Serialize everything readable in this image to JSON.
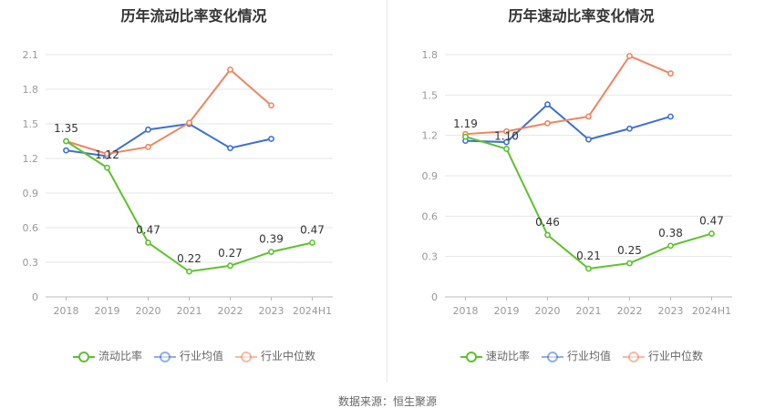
{
  "source_text": "数据来源：恒生聚源",
  "colors": {
    "primary": "#5cc22e",
    "avg": "#3b6fd8",
    "median": "#f0845f",
    "grid": "#e6e6e6",
    "axis": "#999999"
  },
  "chart_data": [
    {
      "type": "line",
      "title": "历年流动比率变化情况",
      "categories": [
        "2018",
        "2019",
        "2020",
        "2021",
        "2022",
        "2023",
        "2024H1"
      ],
      "ylim": [
        0,
        2.1
      ],
      "yticks": [
        "0",
        "0.3",
        "0.6",
        "0.9",
        "1.2",
        "1.5",
        "1.8",
        "2.1"
      ],
      "legend_position": "bottom",
      "series": [
        {
          "name": "流动比率",
          "color": "#5cc22e",
          "labeled": true,
          "values": [
            1.35,
            1.12,
            0.47,
            0.22,
            0.27,
            0.39,
            0.47
          ],
          "labels": [
            "1.35",
            "1.12",
            "0.47",
            "0.22",
            "0.27",
            "0.39",
            "0.47"
          ]
        },
        {
          "name": "行业均值",
          "color": "#3b6fd8",
          "labeled": false,
          "values": [
            1.27,
            1.22,
            1.45,
            1.5,
            1.29,
            1.37,
            null
          ]
        },
        {
          "name": "行业中位数",
          "color": "#f0845f",
          "labeled": false,
          "values": [
            1.35,
            1.24,
            1.3,
            1.51,
            1.97,
            1.66,
            null
          ]
        }
      ]
    },
    {
      "type": "line",
      "title": "历年速动比率变化情况",
      "categories": [
        "2018",
        "2019",
        "2020",
        "2021",
        "2022",
        "2023",
        "2024H1"
      ],
      "ylim": [
        0,
        1.8
      ],
      "yticks": [
        "0",
        "0.3",
        "0.6",
        "0.9",
        "1.2",
        "1.5",
        "1.8"
      ],
      "legend_position": "bottom",
      "series": [
        {
          "name": "速动比率",
          "color": "#5cc22e",
          "labeled": true,
          "values": [
            1.19,
            1.1,
            0.46,
            0.21,
            0.25,
            0.38,
            0.47
          ],
          "labels": [
            "1.19",
            "1.10",
            "0.46",
            "0.21",
            "0.25",
            "0.38",
            "0.47"
          ]
        },
        {
          "name": "行业均值",
          "color": "#3b6fd8",
          "labeled": false,
          "values": [
            1.16,
            1.15,
            1.43,
            1.17,
            1.25,
            1.34,
            null
          ]
        },
        {
          "name": "行业中位数",
          "color": "#f0845f",
          "labeled": false,
          "values": [
            1.21,
            1.23,
            1.29,
            1.34,
            1.79,
            1.66,
            null
          ]
        }
      ]
    }
  ]
}
